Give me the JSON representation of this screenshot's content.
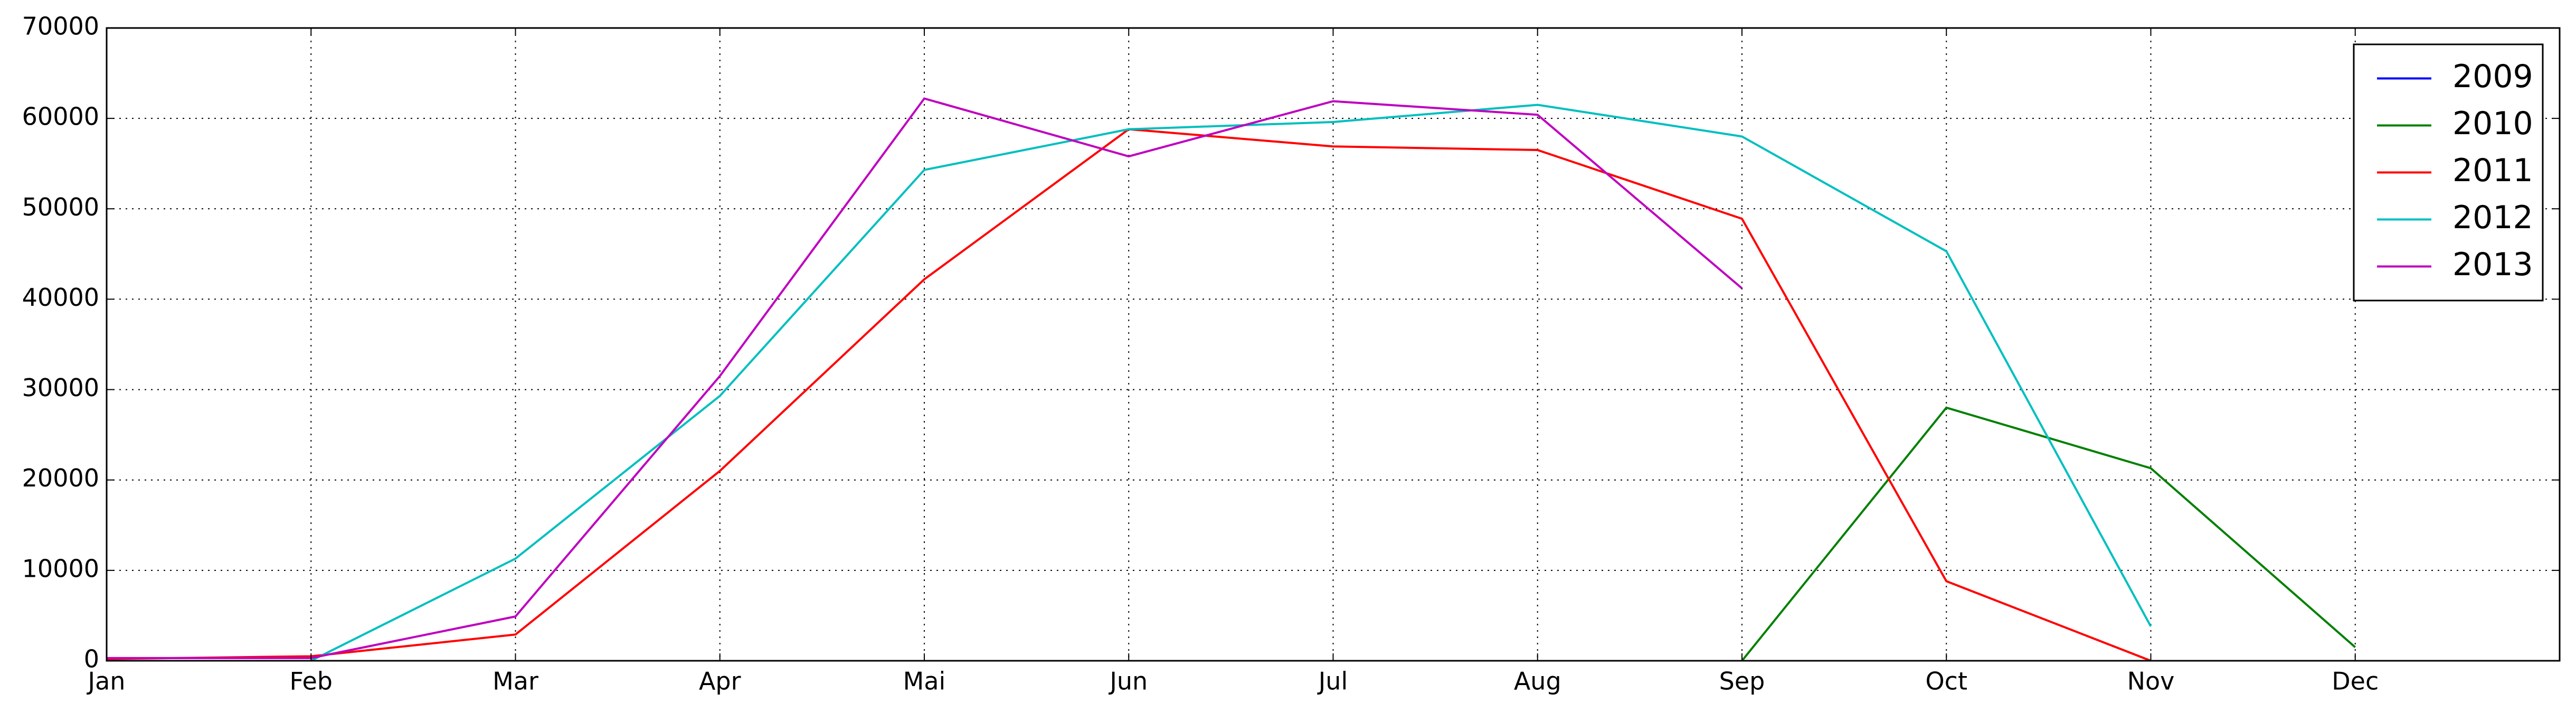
{
  "chart_data": {
    "type": "line",
    "categories": [
      "Jan",
      "Feb",
      "Mar",
      "Apr",
      "Mai",
      "Jun",
      "Jul",
      "Aug",
      "Sep",
      "Oct",
      "Nov",
      "Dec"
    ],
    "series": [
      {
        "name": "2009",
        "color": "#0000ff",
        "values": [
          null,
          null,
          null,
          null,
          null,
          null,
          null,
          null,
          null,
          null,
          null,
          null
        ]
      },
      {
        "name": "2010",
        "color": "#008000",
        "values": [
          null,
          null,
          null,
          null,
          null,
          null,
          null,
          null,
          0,
          28000,
          21300,
          1500
        ]
      },
      {
        "name": "2011",
        "color": "#ff0000",
        "values": [
          200,
          500,
          2900,
          21000,
          42200,
          58800,
          56900,
          56500,
          48900,
          8800,
          0,
          null
        ]
      },
      {
        "name": "2012",
        "color": "#00bfbf",
        "values": [
          null,
          0,
          11300,
          29300,
          54300,
          58800,
          59600,
          61500,
          58000,
          45300,
          3800,
          null
        ]
      },
      {
        "name": "2013",
        "color": "#bf00bf",
        "values": [
          300,
          300,
          4900,
          31500,
          62200,
          55800,
          61900,
          60400,
          41200,
          null,
          null,
          null
        ]
      }
    ],
    "ylim": [
      0,
      70000
    ],
    "yticks": [
      0,
      10000,
      20000,
      30000,
      40000,
      50000,
      60000,
      70000
    ],
    "grid": true,
    "legend": "upper right"
  }
}
